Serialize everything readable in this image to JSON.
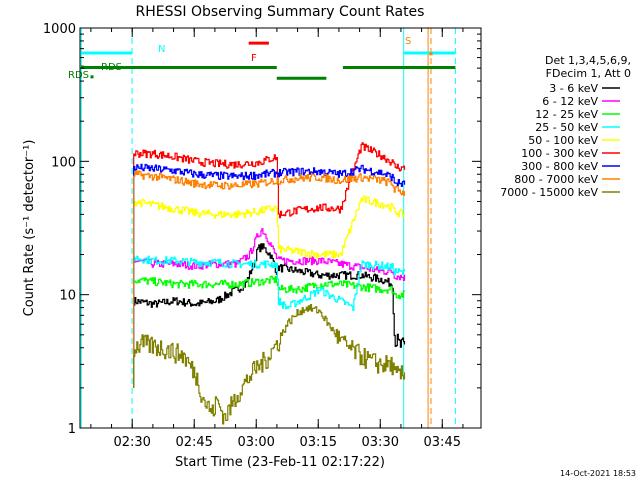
{
  "chart_data": {
    "type": "line",
    "title": "RHESSI Observing Summary Count Rates",
    "xlabel": "Start Time (23-Feb-11 02:17:22)",
    "ylabel": "Count Rate (s⁻¹ detector⁻¹)",
    "y_scale": "log",
    "ylim": [
      1,
      1000
    ],
    "x_unit": "minutes after 02:17:22",
    "xlim": [
      0,
      97
    ],
    "x_ticks": [
      {
        "label": "02:30",
        "x": 12.63
      },
      {
        "label": "02:45",
        "x": 27.63
      },
      {
        "label": "03:00",
        "x": 42.63
      },
      {
        "label": "03:15",
        "x": 57.63
      },
      {
        "label": "03:30",
        "x": 72.63
      },
      {
        "label": "03:45",
        "x": 87.63
      }
    ],
    "y_ticks": [
      {
        "label": "1",
        "v": 1
      },
      {
        "label": "10",
        "v": 10
      },
      {
        "label": "100",
        "v": 100
      },
      {
        "label": "1000",
        "v": 1000
      }
    ],
    "legend": {
      "header": [
        "Det 1,3,4,5,6,9,",
        "FDecim 1, Att 0"
      ],
      "placement": "right"
    },
    "series": [
      {
        "name": "3 - 6 keV",
        "color": "#000000",
        "x": [
          13,
          18,
          23,
          28,
          33,
          38,
          40,
          42,
          43,
          44,
          46,
          47.5,
          48,
          53,
          58,
          63,
          68,
          73,
          75.5,
          76,
          77,
          78.5
        ],
        "y": [
          9,
          8.5,
          9,
          8.5,
          9,
          11,
          12,
          17,
          22,
          23,
          20,
          15,
          16,
          15,
          14,
          14,
          14,
          13,
          12,
          5,
          4.2,
          4
        ]
      },
      {
        "name": "6 - 12 keV",
        "color": "#ff00ff",
        "x": [
          13,
          18,
          23,
          28,
          33,
          38,
          41,
          43,
          44,
          45.5,
          47.5,
          48,
          53,
          58,
          63,
          68,
          73,
          75.5,
          76,
          78.5
        ],
        "y": [
          18,
          17,
          17,
          16.5,
          17,
          17,
          20,
          28,
          31,
          26,
          19,
          18,
          18,
          18,
          17,
          16,
          15,
          15,
          14,
          13.5
        ]
      },
      {
        "name": "12 - 25 keV",
        "color": "#00ff00",
        "x": [
          13,
          18,
          23,
          28,
          33,
          38,
          43,
          47.5,
          48,
          53,
          58,
          63,
          68,
          73,
          75.5,
          76,
          78.5
        ],
        "y": [
          13,
          12.5,
          12,
          12,
          12,
          12,
          12.5,
          13,
          11,
          11,
          12,
          12,
          11.5,
          11,
          11,
          10,
          10
        ]
      },
      {
        "name": "25 - 50 keV",
        "color": "#00ffff",
        "x": [
          13,
          18,
          23,
          28,
          33,
          38,
          43,
          47.5,
          48,
          50,
          53,
          56,
          58,
          60,
          63,
          66,
          68,
          73,
          75.5,
          76,
          78.5
        ],
        "y": [
          19,
          18,
          18,
          17.5,
          17.5,
          17,
          17,
          17,
          9,
          8,
          9,
          10,
          11,
          10,
          9,
          8,
          17,
          16.5,
          16,
          15,
          14.5
        ]
      },
      {
        "name": "50 - 100 keV",
        "color": "#ffff00",
        "x": [
          13,
          18,
          23,
          28,
          33,
          38,
          43,
          47.5,
          48,
          53,
          58,
          63,
          68,
          73,
          75.5,
          76,
          78.5
        ],
        "y": [
          50,
          47,
          44,
          41,
          40,
          40,
          42,
          45,
          22,
          21,
          20,
          20,
          52,
          48,
          45,
          42,
          40
        ]
      },
      {
        "name": "100 - 300 keV",
        "color": "#ff0000",
        "x": [
          13,
          18,
          23,
          28,
          33,
          38,
          43,
          47.5,
          48,
          53,
          58,
          63,
          68,
          73,
          75.5,
          76,
          78.5
        ],
        "y": [
          115,
          114,
          108,
          100,
          96,
          95,
          98,
          108,
          40,
          43,
          45,
          44,
          130,
          110,
          98,
          92,
          88
        ]
      },
      {
        "name": "300 - 800 keV",
        "color": "#0000ff",
        "x": [
          13,
          18,
          23,
          28,
          33,
          38,
          43,
          47.5,
          53,
          58,
          63,
          68,
          73,
          75.5,
          76,
          78.5
        ],
        "y": [
          90,
          88,
          85,
          80,
          78,
          77,
          79,
          82,
          84,
          84,
          80,
          88,
          82,
          76,
          70,
          67
        ]
      },
      {
        "name": "800 - 7000 keV",
        "color": "#ff8000",
        "x": [
          13,
          18,
          23,
          28,
          33,
          38,
          43,
          47.5,
          53,
          58,
          63,
          68,
          73,
          75.5,
          76,
          78.5
        ],
        "y": [
          80,
          77,
          73,
          68,
          66,
          66,
          68,
          72,
          75,
          76,
          72,
          76,
          72,
          68,
          62,
          58
        ]
      },
      {
        "name": "7000 - 15000 keV",
        "color": "#808000",
        "x": [
          13,
          15,
          20,
          25,
          28,
          30,
          32,
          33,
          35,
          38,
          40,
          42,
          45,
          48,
          50,
          53,
          55,
          58,
          60,
          63,
          65,
          68,
          70,
          73,
          75.5,
          76,
          78.5
        ],
        "y": [
          4,
          4.3,
          4,
          3.5,
          2.5,
          1.6,
          1.3,
          1.6,
          1.2,
          1.8,
          2.2,
          2.7,
          3.3,
          4.5,
          6,
          7.5,
          8,
          7.5,
          6,
          4.5,
          4,
          3.5,
          3.2,
          3,
          3,
          2.5,
          2.5
        ]
      }
    ],
    "flag_bars": {
      "labels": {
        "RDS": "RDS",
        "F": "F",
        "S": "S"
      },
      "segments": [
        {
          "label": "RDS",
          "color": "#00ffff",
          "x0": 0.3,
          "x1": 12.6,
          "level": 650
        },
        {
          "label": "RDS",
          "color": "#00ffff",
          "x0": 78.3,
          "x1": 90.8,
          "level": 650
        },
        {
          "label": "RDS",
          "color": "#008000",
          "x0": 0.3,
          "x1": 47.6,
          "level": 505
        },
        {
          "label": "RDS",
          "color": "#008000",
          "x0": 47.6,
          "x1": 59.6,
          "level": 420
        },
        {
          "label": "RDS",
          "color": "#008000",
          "x0": 63.6,
          "x1": 90.8,
          "level": 505
        },
        {
          "label": "F",
          "color": "#ff0000",
          "x0": 40.8,
          "x1": 45.7,
          "level": 770
        },
        {
          "label": "S",
          "color": "#ff8000",
          "x0": 84.5,
          "x1": 85.3,
          "level": 640
        }
      ],
      "rds_ticks": [
        {
          "x": 0.6,
          "level": 510,
          "label": "RDS"
        },
        {
          "x": 2.9,
          "level": 430,
          "label": "RDS"
        }
      ]
    },
    "vertical_lines": [
      {
        "x": 0.3,
        "color": "#00ffff",
        "style": "solid"
      },
      {
        "x": 12.6,
        "color": "#00ffff",
        "style": "dashed"
      },
      {
        "x": 78.3,
        "color": "#00ffff",
        "style": "solid"
      },
      {
        "x": 90.8,
        "color": "#00ffff",
        "style": "dashed"
      },
      {
        "x": 84.2,
        "color": "#ff8000",
        "style": "solid"
      },
      {
        "x": 84.9,
        "color": "#ff8000",
        "style": "dashed"
      }
    ],
    "corner_labels": {
      "N": "N"
    },
    "timestamp": "14-Oct-2021 18:53"
  }
}
